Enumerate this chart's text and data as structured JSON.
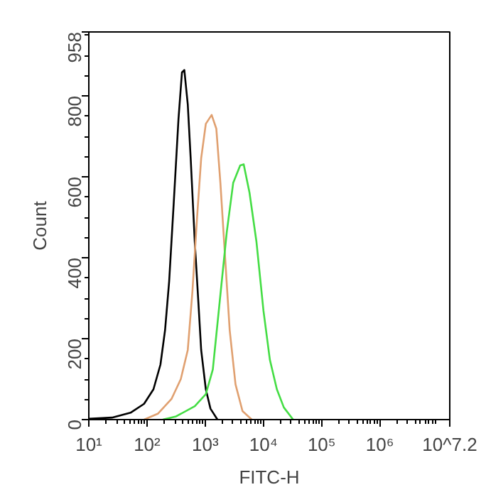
{
  "chart_data": {
    "type": "line",
    "xlabel": "FITC-H",
    "ylabel": "Count",
    "log": "x",
    "grid": false,
    "marker": "none",
    "line_style": "solid",
    "xlim": [
      10,
      15848932
    ],
    "ylim": [
      0,
      958
    ],
    "xticks": [
      {
        "value": 10,
        "label": "10¹"
      },
      {
        "value": 100,
        "label": "10²"
      },
      {
        "value": 1000,
        "label": "10³"
      },
      {
        "value": 10000,
        "label": "10⁴"
      },
      {
        "value": 100000,
        "label": "10⁵"
      },
      {
        "value": 1000000,
        "label": "10⁶"
      },
      {
        "value": 15848932,
        "label": "10^7.2"
      }
    ],
    "yticks": [
      0,
      200,
      400,
      600,
      800,
      958
    ],
    "series": [
      {
        "color": "#000000",
        "x": [
          10,
          25,
          52,
          89,
          129,
          170,
          204,
          240,
          288,
          347,
          398,
          437,
          501,
          562,
          661,
          759,
          851,
          1023,
          1230,
          1622
        ],
        "values": [
          2,
          5,
          17,
          39,
          75,
          136,
          221,
          342,
          537,
          743,
          858,
          864,
          779,
          646,
          439,
          294,
          172,
          75,
          27,
          0
        ]
      },
      {
        "color": "#e0a070",
        "x": [
          89,
          155,
          263,
          380,
          501,
          603,
          724,
          851,
          1023,
          1288,
          1549,
          1820,
          2188,
          2630,
          3311,
          4365,
          6310
        ],
        "values": [
          0,
          15,
          51,
          100,
          172,
          318,
          500,
          646,
          731,
          753,
          719,
          585,
          403,
          221,
          87,
          21,
          0
        ]
      },
      {
        "color": "#44dd44",
        "x": [
          186,
          316,
          661,
          1023,
          1349,
          1778,
          2344,
          3020,
          3981,
          4571,
          5754,
          7586,
          10000,
          12880,
          16980,
          22390,
          32360
        ],
        "values": [
          0,
          8,
          33,
          63,
          124,
          294,
          464,
          585,
          628,
          631,
          561,
          439,
          269,
          148,
          75,
          30,
          0
        ]
      }
    ]
  }
}
